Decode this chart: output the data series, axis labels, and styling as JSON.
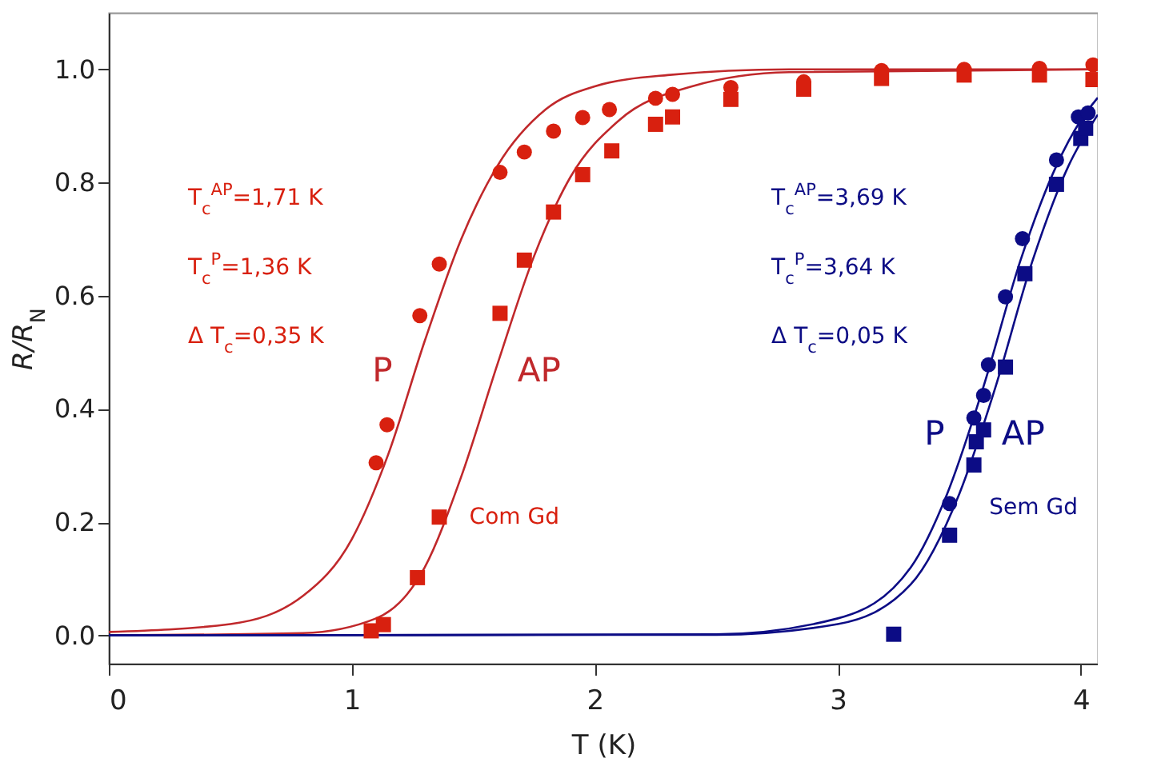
{
  "chart_data": {
    "type": "scatter",
    "xlabel": "T (K)",
    "ylabel": "R/R$_{N}$",
    "xlim": [
      0,
      4.07
    ],
    "xticks": [
      0,
      1,
      2,
      3,
      4
    ],
    "ylim": [
      -0.05,
      1.1
    ],
    "yticks": [
      {
        "value": 0,
        "label": "0.0"
      },
      {
        "value": 0.2,
        "label": "0.2"
      },
      {
        "value": 0.4,
        "label": "0.4"
      },
      {
        "value": 0.6,
        "label": "0.6"
      },
      {
        "value": 0.8,
        "label": "0.8"
      },
      {
        "value": 1,
        "label": "1.0"
      }
    ],
    "grid": false,
    "legend": false,
    "series": [
      {
        "marker": "circle",
        "color": "#d8200f",
        "x": [
          1.1,
          1.145,
          1.28,
          1.36,
          1.61,
          1.71,
          1.83,
          1.95,
          2.06,
          2.25,
          2.32,
          2.56,
          2.86,
          3.18,
          3.52,
          3.83,
          4.05
        ],
        "values": [
          0.305,
          0.372,
          0.565,
          0.656,
          0.818,
          0.854,
          0.891,
          0.915,
          0.929,
          0.949,
          0.956,
          0.968,
          0.978,
          0.998,
          1.0,
          1.002,
          1.008
        ]
      },
      {
        "marker": "square",
        "color": "#d8200f",
        "x": [
          1.08,
          1.13,
          1.27,
          1.36,
          1.61,
          1.71,
          1.83,
          1.95,
          2.07,
          2.25,
          2.32,
          2.56,
          2.86,
          3.18,
          3.52,
          3.83,
          4.05
        ],
        "values": [
          0.008,
          0.019,
          0.102,
          0.209,
          0.569,
          0.663,
          0.748,
          0.814,
          0.856,
          0.903,
          0.916,
          0.947,
          0.965,
          0.984,
          0.99,
          0.99,
          0.982
        ]
      },
      {
        "marker": "circle",
        "color": "#0c0c85",
        "x": [
          3.46,
          3.56,
          3.6,
          3.62,
          3.69,
          3.76,
          3.9,
          3.99,
          4.03
        ],
        "values": [
          0.233,
          0.384,
          0.424,
          0.478,
          0.598,
          0.701,
          0.84,
          0.916,
          0.923
        ]
      },
      {
        "marker": "square",
        "color": "#0c0c85",
        "x": [
          3.23,
          3.46,
          3.56,
          3.57,
          3.6,
          3.69,
          3.77,
          3.9,
          4.0,
          4.02
        ],
        "values": [
          0.002,
          0.177,
          0.301,
          0.342,
          0.363,
          0.474,
          0.639,
          0.797,
          0.878,
          0.896
        ]
      },
      {
        "type": "line",
        "name": "P",
        "color": "#c0282b",
        "x": [
          0,
          0.5,
          0.8,
          1.0,
          1.15,
          1.3,
          1.45,
          1.6,
          1.8,
          2.0,
          2.3,
          2.8,
          4.07
        ],
        "values": [
          0.006,
          0.02,
          0.07,
          0.17,
          0.32,
          0.52,
          0.7,
          0.83,
          0.93,
          0.97,
          0.99,
          1.0,
          1.0
        ]
      },
      {
        "type": "line",
        "name": "AP",
        "color": "#c0282b",
        "x": [
          0,
          0.8,
          1.1,
          1.3,
          1.45,
          1.6,
          1.75,
          1.9,
          2.1,
          2.4,
          2.8,
          4.07
        ],
        "values": [
          0.0,
          0.004,
          0.03,
          0.12,
          0.28,
          0.48,
          0.67,
          0.81,
          0.91,
          0.97,
          0.995,
          1.0
        ]
      },
      {
        "type": "line",
        "name": "P",
        "color": "#0c0c85",
        "x": [
          0,
          2.5,
          3.0,
          3.3,
          3.45,
          3.6,
          3.75,
          3.9,
          4.0,
          4.07
        ],
        "values": [
          0.0,
          0.002,
          0.03,
          0.12,
          0.25,
          0.44,
          0.66,
          0.83,
          0.91,
          0.95
        ]
      },
      {
        "type": "line",
        "name": "AP",
        "color": "#0c0c85",
        "x": [
          0,
          2.5,
          3.0,
          3.3,
          3.5,
          3.65,
          3.8,
          3.95,
          4.07
        ],
        "values": [
          0.0,
          0.001,
          0.02,
          0.09,
          0.25,
          0.44,
          0.66,
          0.83,
          0.92
        ]
      }
    ],
    "annotations": [
      "T$_{c}$$^{AP}$=1,71 K",
      "T$_{c}$$^{P}$=1,36 K",
      "Δ T$_{c}$=0,35 K",
      "Com Gd",
      "T$_{c}$$^{AP}$=3,69 K",
      "T$_{c}$$^{P}$=3,64 K",
      "Δ T$_{c}$=0,05 K",
      "Sem Gd"
    ]
  }
}
